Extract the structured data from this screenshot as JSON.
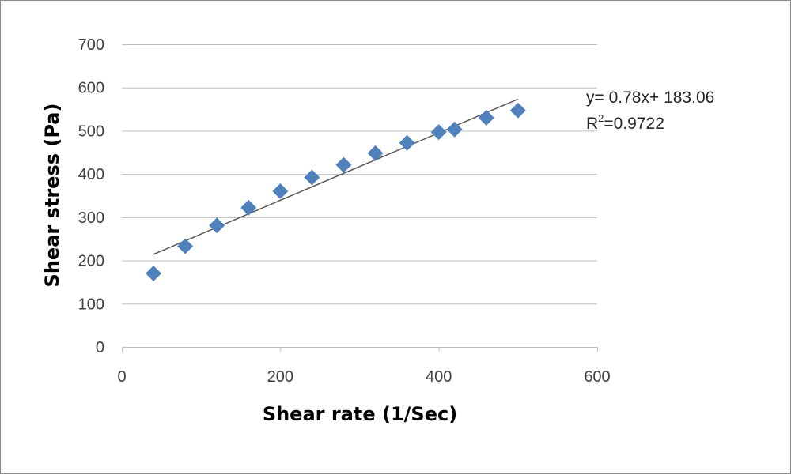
{
  "chart_data": {
    "type": "scatter",
    "xlabel": "Shear rate (1/Sec)",
    "ylabel": "Shear stress (Pa)",
    "xlim": [
      0,
      600
    ],
    "ylim": [
      0,
      700
    ],
    "xticks": [
      0,
      200,
      400,
      600
    ],
    "yticks": [
      0,
      100,
      200,
      300,
      400,
      500,
      600,
      700
    ],
    "grid": "horizontal",
    "marker": "diamond",
    "colors": {
      "marker": "#4f81bd",
      "trendline": "#595959",
      "grid": "#bfbfbf"
    },
    "series": [
      {
        "x": [
          40,
          80,
          120,
          160,
          200,
          240,
          280,
          320,
          360,
          400,
          420,
          460,
          500
        ],
        "y": [
          170,
          233,
          281,
          322,
          360,
          392,
          421,
          448,
          472,
          497,
          503,
          530,
          547
        ]
      }
    ],
    "trendline": {
      "slope": 0.78,
      "intercept": 183.06,
      "x_range": [
        40,
        500
      ]
    },
    "annotations": {
      "equation": "y= 0.78x+ 183.06",
      "r2_prefix": "R",
      "r2_exponent": "2",
      "r2_value": "=0.9722"
    }
  }
}
